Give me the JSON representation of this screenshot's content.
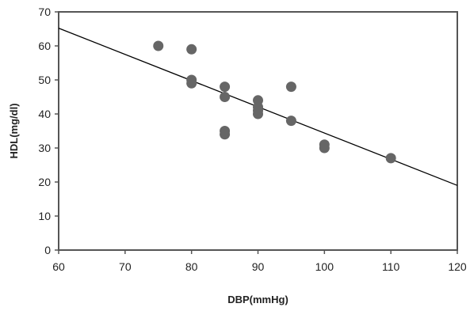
{
  "chart_data": {
    "type": "scatter",
    "title": "",
    "xlabel": "DBP(mmHg)",
    "ylabel": "HDL(mg/dl)",
    "xlim": [
      60,
      120
    ],
    "ylim": [
      0,
      70
    ],
    "x_ticks": [
      60,
      70,
      80,
      90,
      100,
      110,
      120
    ],
    "y_ticks": [
      0,
      10,
      20,
      30,
      40,
      50,
      60,
      70
    ],
    "x_tick_labels": [
      "60",
      "70",
      "80",
      "90",
      "100",
      "110",
      "120"
    ],
    "y_tick_labels": [
      "0",
      "10",
      "20",
      "30",
      "40",
      "50",
      "60",
      "70"
    ],
    "grid": false,
    "legend": "none",
    "points": [
      {
        "x": 75,
        "y": 60
      },
      {
        "x": 80,
        "y": 59
      },
      {
        "x": 80,
        "y": 50
      },
      {
        "x": 80,
        "y": 49
      },
      {
        "x": 85,
        "y": 48
      },
      {
        "x": 85,
        "y": 45
      },
      {
        "x": 85,
        "y": 35
      },
      {
        "x": 85,
        "y": 34
      },
      {
        "x": 90,
        "y": 44
      },
      {
        "x": 90,
        "y": 42
      },
      {
        "x": 90,
        "y": 41
      },
      {
        "x": 90,
        "y": 40
      },
      {
        "x": 95,
        "y": 48
      },
      {
        "x": 95,
        "y": 38
      },
      {
        "x": 100,
        "y": 31
      },
      {
        "x": 100,
        "y": 30
      },
      {
        "x": 110,
        "y": 27
      }
    ],
    "trendline": {
      "type": "linear",
      "x": [
        60,
        120
      ],
      "y": [
        65.2,
        19
      ]
    },
    "colors": {
      "marker": "#666666",
      "line": "#000000",
      "axis": "#555555"
    }
  }
}
